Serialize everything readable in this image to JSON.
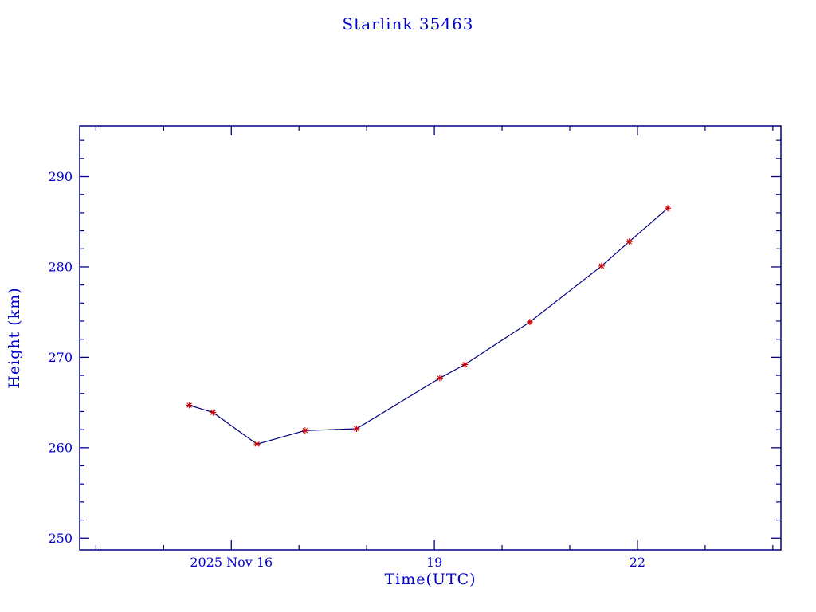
{
  "chart_data": {
    "type": "line",
    "title": "Starlink 35463",
    "xlabel": "Time(UTC)",
    "ylabel": "Height (km)",
    "xlim": [
      13.76,
      24.12
    ],
    "ylim": [
      248.7,
      295.6
    ],
    "x_major_ticks": [
      {
        "value": 16,
        "label": "2025 Nov 16"
      },
      {
        "value": 19,
        "label": "19"
      },
      {
        "value": 22,
        "label": "22"
      }
    ],
    "x_minor_step": 1,
    "y_major_ticks": [
      {
        "value": 250,
        "label": "250"
      },
      {
        "value": 260,
        "label": "260"
      },
      {
        "value": 270,
        "label": "270"
      },
      {
        "value": 280,
        "label": "280"
      },
      {
        "value": 290,
        "label": "290"
      }
    ],
    "y_minor_step": 2,
    "grid": false,
    "legend": "none",
    "series": [
      {
        "name": "height",
        "line_color": "#000080",
        "marker": "asterisk",
        "marker_color": "#cc0000",
        "points": [
          {
            "x": 15.38,
            "y": 264.7
          },
          {
            "x": 15.73,
            "y": 263.9
          },
          {
            "x": 16.38,
            "y": 260.4
          },
          {
            "x": 17.09,
            "y": 261.9
          },
          {
            "x": 17.85,
            "y": 262.1
          },
          {
            "x": 19.08,
            "y": 267.7
          },
          {
            "x": 19.45,
            "y": 269.2
          },
          {
            "x": 20.41,
            "y": 273.9
          },
          {
            "x": 21.47,
            "y": 280.1
          },
          {
            "x": 21.88,
            "y": 282.8
          },
          {
            "x": 22.45,
            "y": 286.5
          }
        ]
      }
    ],
    "colors": {
      "frame": "#000080",
      "text": "#0000cd",
      "background": "#ffffff"
    }
  }
}
